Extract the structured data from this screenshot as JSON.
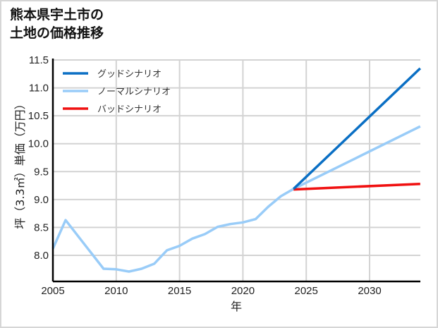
{
  "title_lines": [
    "熊本県宇土市の",
    "土地の価格推移"
  ],
  "chart_data": {
    "type": "line",
    "title": "熊本県宇土市の土地の価格推移",
    "xlabel": "年",
    "ylabel": "坪（3.3㎡）単価（万円）",
    "xlim": [
      2005,
      2034
    ],
    "ylim": [
      7.55,
      11.5
    ],
    "xticks": [
      2005,
      2010,
      2015,
      2020,
      2025,
      2030
    ],
    "xtick_labels": [
      "2005",
      "2010",
      "2015",
      "2020",
      "2025",
      "2030"
    ],
    "yticks": [
      8.0,
      8.5,
      9.0,
      9.5,
      10.0,
      10.5,
      11.0,
      11.5
    ],
    "ytick_labels": [
      "8.0",
      "8.5",
      "9.0",
      "9.5",
      "10.0",
      "10.5",
      "11.0",
      "11.5"
    ],
    "grid": true,
    "legend_position": "upper left",
    "series": [
      {
        "name": "グッドシナリオ",
        "color": "#0a6fc4",
        "x": [
          2024,
          2034
        ],
        "values": [
          9.19,
          11.35
        ]
      },
      {
        "name": "ノーマルシナリオ",
        "color": "#99ccf8",
        "x": [
          2005,
          2006,
          2009,
          2010,
          2011,
          2012,
          2013,
          2014,
          2015,
          2016,
          2017,
          2018,
          2019,
          2020,
          2021,
          2022,
          2023,
          2024,
          2034
        ],
        "values": [
          8.12,
          8.63,
          7.76,
          7.75,
          7.71,
          7.76,
          7.85,
          8.09,
          8.17,
          8.3,
          8.38,
          8.51,
          8.56,
          8.59,
          8.65,
          8.87,
          9.06,
          9.19,
          10.31
        ]
      },
      {
        "name": "バッドシナリオ",
        "color": "#f01010",
        "x": [
          2024,
          2034
        ],
        "values": [
          9.18,
          9.28
        ]
      }
    ]
  }
}
